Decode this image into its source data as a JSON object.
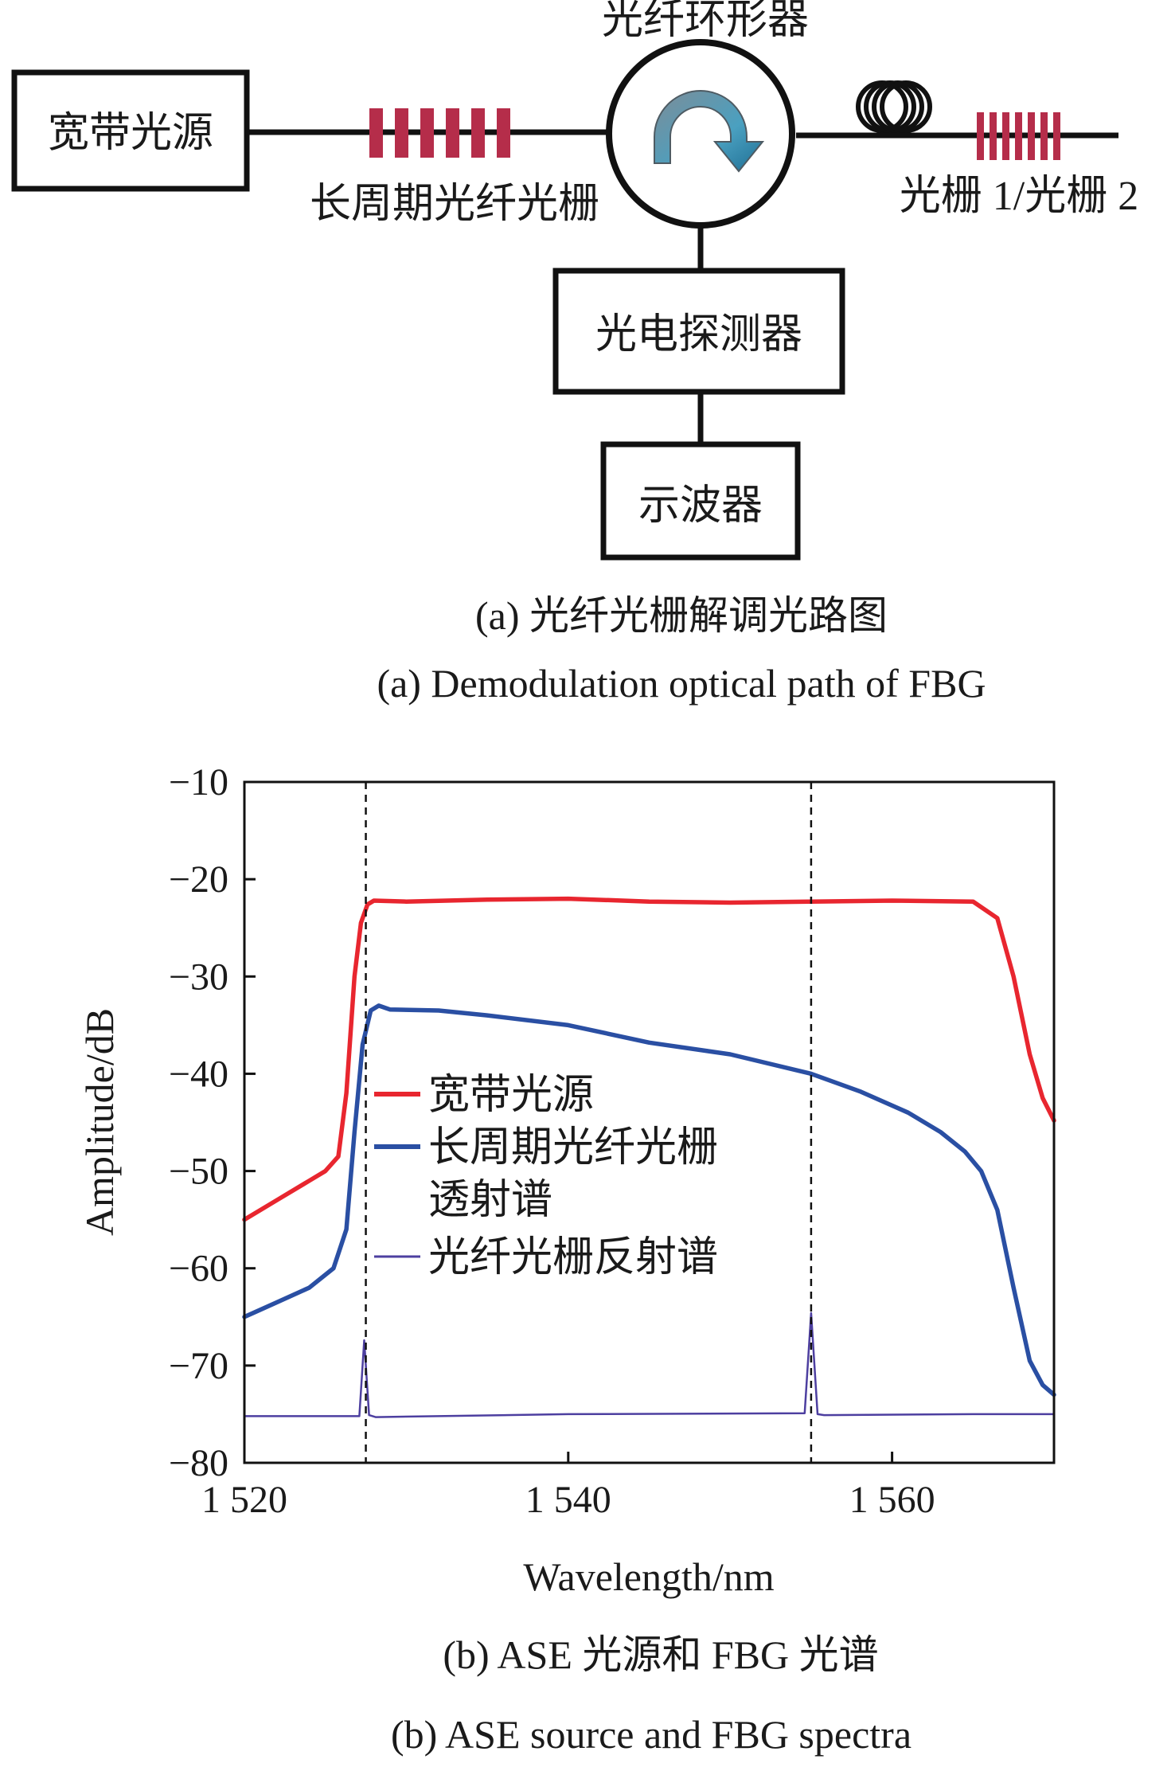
{
  "diagram": {
    "nodes": {
      "source": "宽带光源",
      "lpg": "长周期光纤光栅",
      "circulator": "光纤环形器",
      "gratings": "光栅 1/光栅 2",
      "detector": "光电探测器",
      "oscilloscope": "示波器"
    },
    "caption_cn": "(a) 光纤光栅解调光路图",
    "caption_en": "(a) Demodulation optical path of FBG"
  },
  "chart_caption_cn": "(b) ASE 光源和 FBG 光谱",
  "chart_caption_en": "(b) ASE source and FBG spectra",
  "colors": {
    "red": "#e8262f",
    "blue": "#2a4fa3",
    "purple": "#4d3fa0",
    "grating": "#b52d4a",
    "arrow": "#5d8fa8"
  },
  "chart_data": {
    "type": "line",
    "xlabel": "Wavelength/nm",
    "ylabel": "Amplitude/dB",
    "xlim": [
      1520,
      1570
    ],
    "ylim": [
      -80,
      -10
    ],
    "x_ticks": [
      1520,
      1540,
      1560
    ],
    "x_tick_labels": [
      "1 520",
      "1 540",
      "1 560"
    ],
    "y_ticks": [
      -10,
      -20,
      -30,
      -40,
      -50,
      -60,
      -70,
      -80
    ],
    "y_tick_labels": [
      "−10",
      "−20",
      "−30",
      "−40",
      "−50",
      "−60",
      "−70",
      "−80"
    ],
    "vlines": [
      1527.5,
      1555
    ],
    "legend": [
      "宽带光源",
      "长周期光纤光栅透射谱",
      "光纤光栅反射谱"
    ],
    "legend_lines": [
      [
        "宽带光源"
      ],
      [
        "长周期光纤光栅",
        "透射谱"
      ],
      [
        "光纤光栅反射谱"
      ]
    ],
    "series": [
      {
        "name": "宽带光源",
        "x": [
          1520,
          1522,
          1524,
          1525,
          1525.8,
          1526.3,
          1526.8,
          1527.2,
          1527.6,
          1528,
          1530,
          1535,
          1540,
          1545,
          1550,
          1555,
          1560,
          1565,
          1566.5,
          1567.5,
          1568.5,
          1569.3,
          1570
        ],
        "values": [
          -55,
          -53,
          -51,
          -50,
          -48.5,
          -42,
          -30,
          -24.5,
          -22.6,
          -22.2,
          -22.3,
          -22.1,
          -22.0,
          -22.3,
          -22.4,
          -22.3,
          -22.2,
          -22.3,
          -24,
          -30,
          -38,
          -42.5,
          -44.8
        ]
      },
      {
        "name": "长周期光纤光栅透射谱",
        "x": [
          1520,
          1522,
          1524,
          1525.5,
          1526.3,
          1526.8,
          1527.3,
          1527.8,
          1528.3,
          1529,
          1532,
          1535,
          1540,
          1545,
          1550,
          1555,
          1558,
          1561,
          1563,
          1564.5,
          1565.5,
          1566.5,
          1567.5,
          1568.5,
          1569.3,
          1570
        ],
        "values": [
          -65,
          -63.5,
          -62,
          -60,
          -56,
          -46,
          -37,
          -33.5,
          -33,
          -33.4,
          -33.5,
          -34,
          -35,
          -36.8,
          -38,
          -40,
          -41.8,
          -44,
          -46,
          -48,
          -50,
          -54,
          -62,
          -69.5,
          -72,
          -73
        ]
      },
      {
        "name": "光纤光栅反射谱",
        "x": [
          1520,
          1527.1,
          1527.4,
          1527.7,
          1528.1,
          1540,
          1554.6,
          1555,
          1555.4,
          1555.8,
          1565,
          1570
        ],
        "values": [
          -75.2,
          -75.2,
          -67.4,
          -75.1,
          -75.3,
          -75.0,
          -74.9,
          -64.6,
          -75.0,
          -75.1,
          -75.0,
          -75.0
        ]
      }
    ]
  }
}
